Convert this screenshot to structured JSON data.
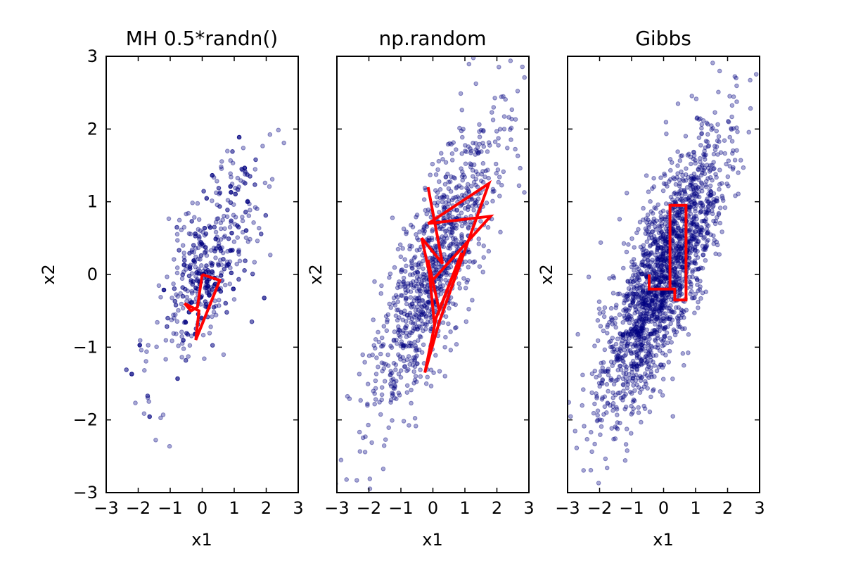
{
  "chart_data": [
    {
      "type": "scatter",
      "title": "MH 0.5*randn()",
      "xlabel": "x1",
      "ylabel": "x2",
      "xlim": [
        -3,
        3
      ],
      "ylim": [
        -3,
        3
      ],
      "xticks": [
        -3,
        -2,
        -1,
        0,
        1,
        2,
        3
      ],
      "yticks": [
        -3,
        -2,
        -1,
        0,
        1,
        2,
        3
      ],
      "xtick_labels": [
        "−3",
        "−2",
        "−1",
        "0",
        "1",
        "2",
        "3"
      ],
      "ytick_labels": [
        "−3",
        "−2",
        "−1",
        "0",
        "1",
        "2",
        "3"
      ],
      "show_yticklabels": true,
      "grid": false,
      "point_color": "#000080",
      "point_alpha": 0.4,
      "point_count": 650,
      "sampler": "mh",
      "seed": 11,
      "path_color": "#ff0000",
      "path": {
        "x": [
          0.0,
          0.55,
          -0.2,
          -0.1,
          -0.55,
          -0.35,
          -0.15,
          0.0
        ],
        "y": [
          0.0,
          -0.08,
          -0.9,
          -0.5,
          -0.4,
          -0.5,
          -0.45,
          0.0
        ]
      }
    },
    {
      "type": "scatter",
      "title": "np.random",
      "xlabel": "x1",
      "ylabel": "x2",
      "xlim": [
        -3,
        3
      ],
      "ylim": [
        -3,
        3
      ],
      "xticks": [
        -3,
        -2,
        -1,
        0,
        1,
        2,
        3
      ],
      "yticks": [
        -3,
        -2,
        -1,
        0,
        1,
        2,
        3
      ],
      "xtick_labels": [
        "−3",
        "−2",
        "−1",
        "0",
        "1",
        "2",
        "3"
      ],
      "ytick_labels": [],
      "show_yticklabels": false,
      "grid": false,
      "point_color": "#000080",
      "point_alpha": 0.4,
      "point_count": 1000,
      "sampler": "iid",
      "seed": 23,
      "path_color": "#ff0000",
      "path": {
        "x": [
          -0.15,
          0.3,
          -0.35,
          -0.05,
          1.8,
          -0.15,
          1.75,
          0.2,
          -0.25,
          0.1,
          0.9,
          0.2,
          -0.15,
          0.05
        ],
        "y": [
          1.2,
          0.15,
          0.5,
          -0.1,
          0.8,
          0.7,
          1.25,
          -0.65,
          -1.35,
          -0.6,
          0.3,
          -0.5,
          0.2,
          -0.7
        ]
      }
    },
    {
      "type": "scatter",
      "title": "Gibbs",
      "xlabel": "x1",
      "ylabel": "x2",
      "xlim": [
        -3,
        3
      ],
      "ylim": [
        -3,
        3
      ],
      "xticks": [
        -3,
        -2,
        -1,
        0,
        1,
        2,
        3
      ],
      "yticks": [
        -3,
        -2,
        -1,
        0,
        1,
        2,
        3
      ],
      "xtick_labels": [
        "−3",
        "−2",
        "−1",
        "0",
        "1",
        "2",
        "3"
      ],
      "ytick_labels": [],
      "show_yticklabels": false,
      "grid": false,
      "point_color": "#000080",
      "point_alpha": 0.4,
      "point_count": 1900,
      "sampler": "gibbs",
      "seed": 37,
      "path_color": "#ff0000",
      "path": {
        "x": [
          -0.45,
          -0.45,
          0.2,
          0.2,
          0.2,
          0.7,
          0.7,
          0.35,
          0.35,
          -0.45,
          -0.45
        ],
        "y": [
          0.0,
          -0.2,
          -0.2,
          0.95,
          0.95,
          0.95,
          -0.35,
          -0.35,
          -0.2,
          -0.2,
          0.0
        ]
      }
    }
  ]
}
